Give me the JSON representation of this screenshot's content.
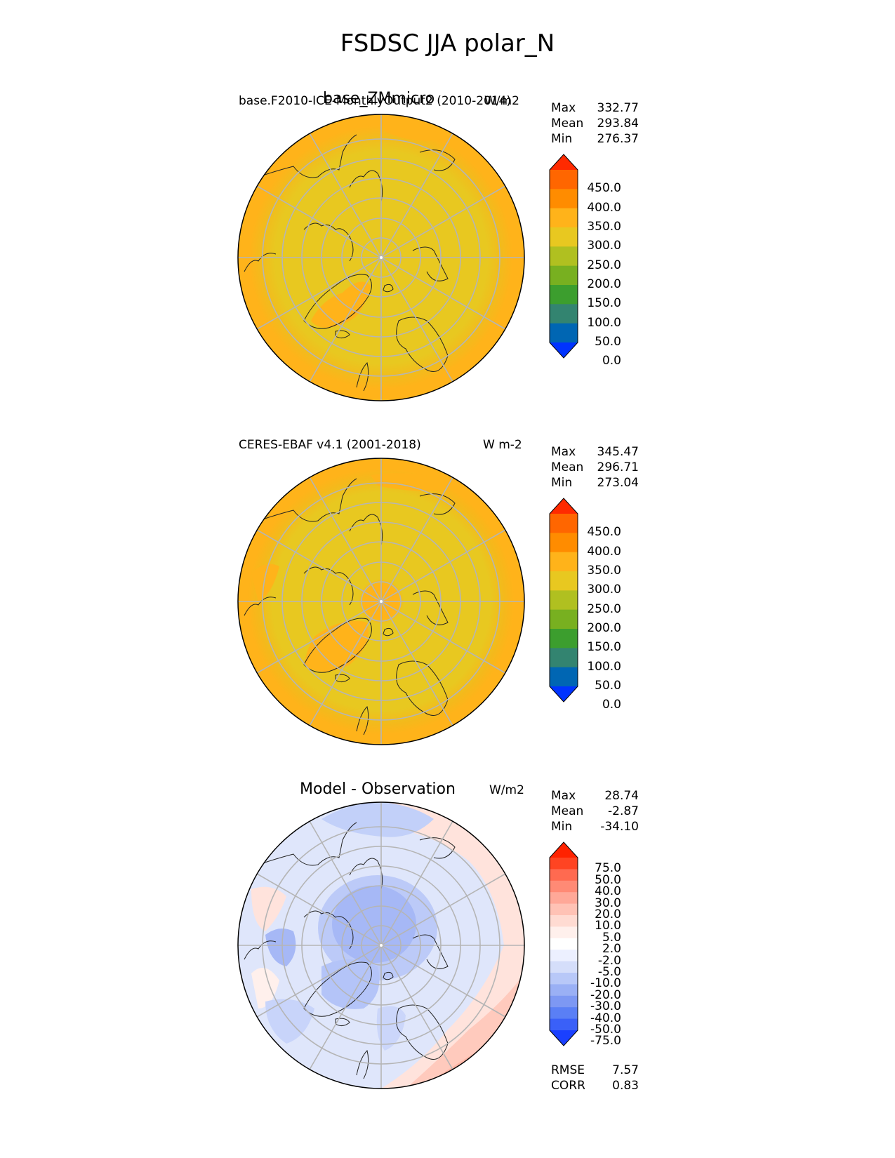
{
  "title": "FSDSC JJA polar_N",
  "panels": [
    {
      "left_label": "base.F2010-ICE-MonthlyOutput2 (2010-2014)",
      "center_title": "base_ZMmicro",
      "right_label": "W/m2",
      "stats": [
        {
          "label": "Max",
          "value": "332.77"
        },
        {
          "label": "Mean",
          "value": "293.84"
        },
        {
          "label": "Min",
          "value": "276.37"
        }
      ],
      "colorbar_ticks": [
        "450.0",
        "400.0",
        "350.0",
        "300.0",
        "250.0",
        "200.0",
        "150.0",
        "100.0",
        "50.0",
        "0.0"
      ],
      "colorbar_colors": [
        "#ff2a00",
        "#ff6600",
        "#ff8c00",
        "#ffb31a",
        "#e8c820",
        "#b0c020",
        "#78b020",
        "#3c9e2e",
        "#338470",
        "#0066b3",
        "#0033ff"
      ]
    },
    {
      "left_label": "CERES-EBAF v4.1 (2001-2018)",
      "center_title": "",
      "right_label": "W m-2",
      "stats": [
        {
          "label": "Max",
          "value": "345.47"
        },
        {
          "label": "Mean",
          "value": "296.71"
        },
        {
          "label": "Min",
          "value": "273.04"
        }
      ],
      "colorbar_ticks": [
        "450.0",
        "400.0",
        "350.0",
        "300.0",
        "250.0",
        "200.0",
        "150.0",
        "100.0",
        "50.0",
        "0.0"
      ],
      "colorbar_colors": [
        "#ff2a00",
        "#ff6600",
        "#ff8c00",
        "#ffb31a",
        "#e8c820",
        "#b0c020",
        "#78b020",
        "#3c9e2e",
        "#338470",
        "#0066b3",
        "#0033ff"
      ]
    },
    {
      "left_label": "",
      "center_title": "Model - Observation",
      "right_label": "W/m2",
      "stats": [
        {
          "label": "Max",
          "value": "28.74"
        },
        {
          "label": "Mean",
          "value": "-2.87"
        },
        {
          "label": "Min",
          "value": "-34.10"
        }
      ],
      "colorbar_ticks": [
        "75.0",
        "50.0",
        "40.0",
        "30.0",
        "20.0",
        "10.0",
        "5.0",
        "2.0",
        "-2.0",
        "-5.0",
        "-10.0",
        "-20.0",
        "-30.0",
        "-40.0",
        "-50.0",
        "-75.0"
      ],
      "colorbar_colors": [
        "#ff2200",
        "#ff4422",
        "#ff6a50",
        "#ff8a75",
        "#ffa898",
        "#ffc2b5",
        "#ffdbd2",
        "#fff0ec",
        "#ffffff",
        "#ecf0ff",
        "#d5defa",
        "#b8c8f8",
        "#9ab0f5",
        "#7d98f3",
        "#5a7ff5",
        "#3a60f8",
        "#1a40ff"
      ],
      "metrics": [
        {
          "label": "RMSE",
          "value": "7.57"
        },
        {
          "label": "CORR",
          "value": "0.83"
        }
      ]
    }
  ]
}
